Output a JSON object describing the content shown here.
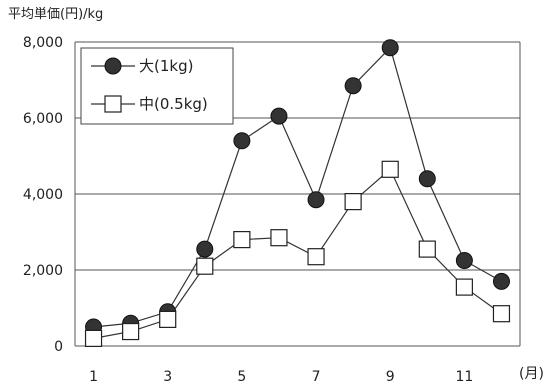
{
  "chart_data": {
    "type": "line",
    "ylabel": "平均単価(円)/kg",
    "x_unit_label": "(月)",
    "x": [
      1,
      2,
      3,
      4,
      5,
      6,
      7,
      8,
      9,
      10,
      11,
      12
    ],
    "x_tick_values": [
      1,
      3,
      5,
      7,
      9,
      11
    ],
    "x_tick_labels": [
      "1",
      "3",
      "5",
      "7",
      "9",
      "11"
    ],
    "xlim": [
      0.5,
      12.5
    ],
    "ylim": [
      0,
      8000
    ],
    "y_tick_values": [
      0,
      2000,
      4000,
      6000,
      8000
    ],
    "y_tick_labels": [
      "0",
      "2,000",
      "4,000",
      "6,000",
      "8,000"
    ],
    "grid": "horizontal",
    "legend_position": "top-left",
    "series": [
      {
        "name": "大(1kg)",
        "marker": "filled-circle",
        "color": "#333333",
        "values": [
          500,
          600,
          900,
          2550,
          5400,
          6050,
          3850,
          6850,
          7850,
          4400,
          2250,
          1700
        ]
      },
      {
        "name": "中(0.5kg)",
        "marker": "open-square",
        "color": "#333333",
        "values": [
          200,
          380,
          700,
          2100,
          2800,
          2850,
          2350,
          3800,
          4650,
          2550,
          1550,
          850
        ]
      }
    ]
  }
}
